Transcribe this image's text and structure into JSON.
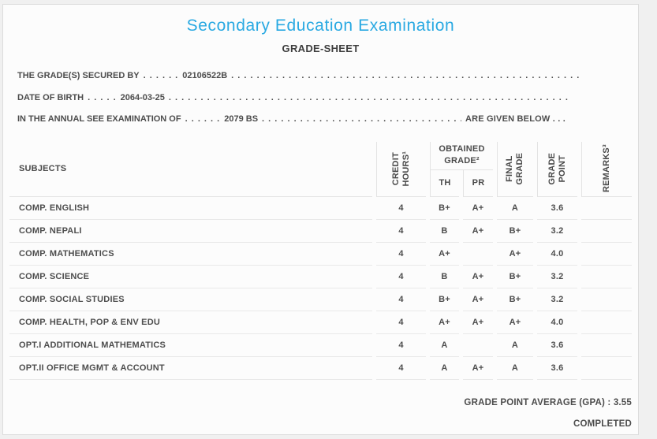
{
  "header": {
    "title": "Secondary Education Examination",
    "subtitle": "GRADE-SHEET"
  },
  "info_lines": [
    {
      "label": "THE GRADE(S) SECURED BY",
      "dots": ". . . . . .",
      "value": "02106522B",
      "fill_dots": ". . . . . . . . . . . . . . . . . . . . . . . . . . . . . . . . . . . . . . . . . . . . . . . . . . . . . . . . . . . . . . . . . . . . . . . . . . . . . . . . . . . . . . . . . . . . . . . . . . . . . . . . . . . . . . . . . . . . . . . . . . . . . . . .",
      "suffix": ""
    },
    {
      "label": "DATE OF BIRTH",
      "dots": ". . . . .",
      "value": "2064-03-25",
      "fill_dots": ". . . . . . . . . . . . . . . . . . . . . . . . . . . . . . . . . . . . . . . . . . . . . . . . . . . . . . . . . . . . . . . . . . . . . . . . . . . . . . . . . . . . . . . . . . . . . . . . . . . . . . . . . . . . . . . . . . . . . . . . . . . . . . . .",
      "suffix": ""
    },
    {
      "label": "IN THE ANNUAL SEE EXAMINATION OF",
      "dots": ". . . . . .",
      "value": "2079 BS",
      "fill_dots": ". . . . . . . . . . . . . . . . . . . . . . . . . . . . . . . . . . . . . . . . . . . . . . . . . . . . . . . . . . . . . . . . . . . . . . . . . . . . . . . . . . . . . . . . . . . . . . . . . . . . . . . . . . . . . . . . . . . . . . . . . . . . . . . .",
      "suffix": "ARE GIVEN BELOW . . ."
    }
  ],
  "table": {
    "headers": {
      "subjects": "SUBJECTS",
      "credit_hours": "CREDIT\nHOURS¹",
      "obtained_grade": "OBTAINED\nGRADE²",
      "th": "TH",
      "pr": "PR",
      "final_grade": "FINAL\nGRADE",
      "grade_point": "GRADE\nPOINT",
      "remarks": "REMARKS³"
    },
    "rows": [
      {
        "subject": "COMP. ENGLISH",
        "credit": "4",
        "th": "B+",
        "pr": "A+",
        "final": "A",
        "gp": "3.6",
        "remarks": ""
      },
      {
        "subject": "COMP. NEPALI",
        "credit": "4",
        "th": "B",
        "pr": "A+",
        "final": "B+",
        "gp": "3.2",
        "remarks": ""
      },
      {
        "subject": "COMP. MATHEMATICS",
        "credit": "4",
        "th": "A+",
        "pr": "",
        "final": "A+",
        "gp": "4.0",
        "remarks": ""
      },
      {
        "subject": "COMP. SCIENCE",
        "credit": "4",
        "th": "B",
        "pr": "A+",
        "final": "B+",
        "gp": "3.2",
        "remarks": ""
      },
      {
        "subject": "COMP. SOCIAL STUDIES",
        "credit": "4",
        "th": "B+",
        "pr": "A+",
        "final": "B+",
        "gp": "3.2",
        "remarks": ""
      },
      {
        "subject": "COMP. HEALTH, POP & ENV EDU",
        "credit": "4",
        "th": "A+",
        "pr": "A+",
        "final": "A+",
        "gp": "4.0",
        "remarks": ""
      },
      {
        "subject": "OPT.I ADDITIONAL MATHEMATICS",
        "credit": "4",
        "th": "A",
        "pr": "",
        "final": "A",
        "gp": "3.6",
        "remarks": ""
      },
      {
        "subject": "OPT.II OFFICE MGMT & ACCOUNT",
        "credit": "4",
        "th": "A",
        "pr": "A+",
        "final": "A",
        "gp": "3.6",
        "remarks": ""
      }
    ]
  },
  "summary": {
    "gpa_line": "GRADE POINT AVERAGE (GPA) : 3.55",
    "completed": "COMPLETED"
  },
  "colors": {
    "accent_blue": "#29a9e2",
    "text": "#4c4c4c",
    "divider": "#e8e8e8"
  }
}
